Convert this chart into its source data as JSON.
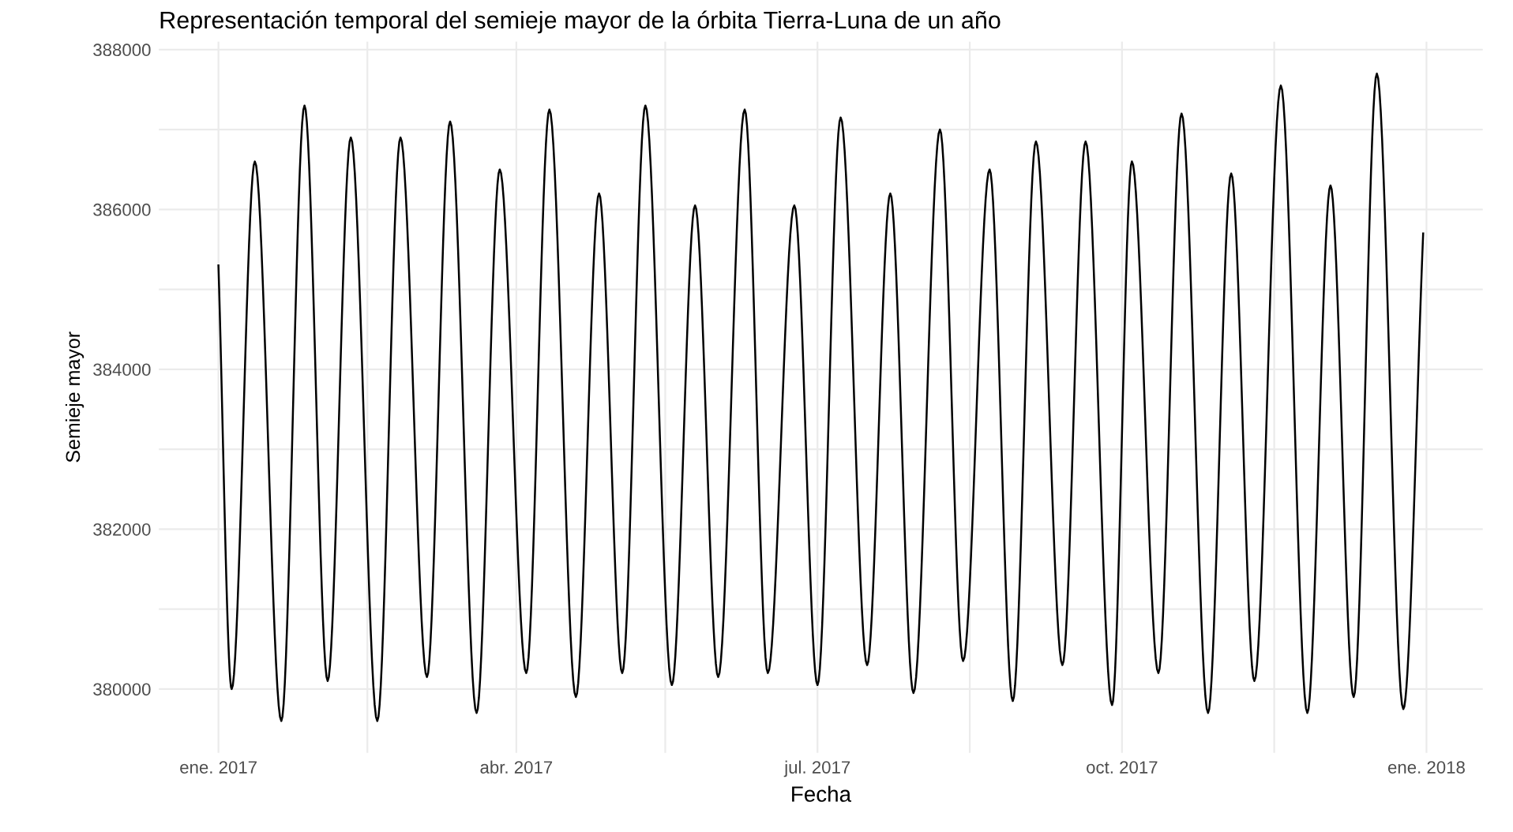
{
  "chart_data": {
    "type": "line",
    "title": "Representación temporal del semieje mayor de la órbita Tierra-Luna de un año",
    "xlabel": "Fecha",
    "ylabel": "Semieje mayor",
    "x": [
      "2017-01-01",
      "2017-01-05",
      "2017-01-12",
      "2017-01-20",
      "2017-01-27",
      "2017-02-03",
      "2017-02-10",
      "2017-02-18",
      "2017-02-25",
      "2017-03-05",
      "2017-03-12",
      "2017-03-20",
      "2017-03-27",
      "2017-04-04",
      "2017-04-11",
      "2017-04-19",
      "2017-04-26",
      "2017-05-03",
      "2017-05-10",
      "2017-05-18",
      "2017-05-25",
      "2017-06-01",
      "2017-06-09",
      "2017-06-16",
      "2017-06-24",
      "2017-07-01",
      "2017-07-08",
      "2017-07-16",
      "2017-07-23",
      "2017-07-30",
      "2017-08-07",
      "2017-08-14",
      "2017-08-22",
      "2017-08-29",
      "2017-09-05",
      "2017-09-13",
      "2017-09-20",
      "2017-09-28",
      "2017-10-04",
      "2017-10-12",
      "2017-10-19",
      "2017-10-27",
      "2017-11-03",
      "2017-11-10",
      "2017-11-18",
      "2017-11-26",
      "2017-12-03",
      "2017-12-10",
      "2017-12-17",
      "2017-12-25",
      "2017-12-31"
    ],
    "series": [
      {
        "color": "#000000",
        "values": [
          385300,
          380000,
          386600,
          379600,
          387300,
          380100,
          386900,
          379600,
          386900,
          380150,
          387100,
          379700,
          386500,
          380200,
          387250,
          379900,
          386200,
          380200,
          387300,
          380050,
          386050,
          380150,
          387250,
          380200,
          386050,
          380050,
          387150,
          380300,
          386200,
          379950,
          387000,
          380350,
          386500,
          379850,
          386850,
          380300,
          386850,
          379800,
          386600,
          380200,
          387200,
          379700,
          386450,
          380100,
          387550,
          379700,
          386300,
          379900,
          387700,
          379750,
          385700
        ]
      }
    ],
    "xlim": [
      "2016-12-14",
      "2018-01-18"
    ],
    "xticks": [
      {
        "value": "2017-01-01",
        "label": "ene. 2017"
      },
      {
        "value": "2017-02-15",
        "label": null
      },
      {
        "value": "2017-04-01",
        "label": "abr. 2017"
      },
      {
        "value": "2017-05-16",
        "label": null
      },
      {
        "value": "2017-07-01",
        "label": "jul. 2017"
      },
      {
        "value": "2017-08-16",
        "label": null
      },
      {
        "value": "2017-10-01",
        "label": "oct. 2017"
      },
      {
        "value": "2017-11-16",
        "label": null
      },
      {
        "value": "2018-01-01",
        "label": "ene. 2018"
      }
    ],
    "ylim": [
      379200,
      388100
    ],
    "yticks": [
      380000,
      {
        "value": 381000,
        "label": null
      },
      382000,
      {
        "value": 383000,
        "label": null
      },
      384000,
      {
        "value": 385000,
        "label": null
      },
      386000,
      {
        "value": 387000,
        "label": null
      },
      388000
    ],
    "grid": true,
    "marker": "none",
    "line_style": "solid"
  }
}
